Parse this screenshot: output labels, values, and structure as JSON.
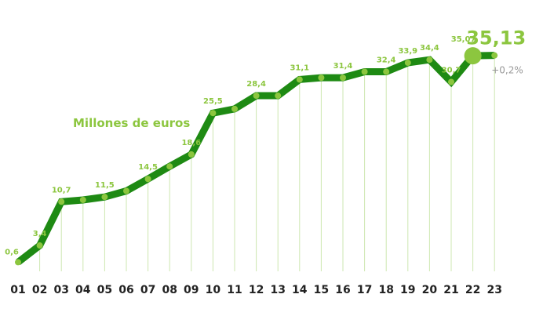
{
  "chart_data": {
    "type": "line",
    "unit_label": "Millones de euros",
    "categories": [
      "01",
      "02",
      "03",
      "04",
      "05",
      "06",
      "07",
      "08",
      "09",
      "10",
      "11",
      "12",
      "13",
      "14",
      "15",
      "16",
      "17",
      "18",
      "19",
      "20",
      "21",
      "22",
      "23"
    ],
    "values": [
      0.6,
      3.4,
      10.7,
      11.0,
      11.5,
      12.5,
      14.5,
      16.6,
      18.6,
      25.5,
      26.2,
      28.4,
      28.4,
      31.1,
      31.4,
      31.4,
      32.4,
      32.4,
      33.9,
      34.4,
      30.7,
      35.07,
      35.13
    ],
    "data_labels": [
      "0,6",
      "3,4",
      "10,7",
      "",
      "11,5",
      "",
      "14,5",
      "",
      "18,6",
      "25,5",
      "",
      "28,4",
      "",
      "31,1",
      "",
      "31,4",
      "",
      "32,4",
      "33,9",
      "34,4",
      "30,7",
      "35,07",
      "35,13"
    ],
    "final_value_label": "35,13",
    "final_change_label": "+0,2%",
    "highlight_index": 21,
    "ylim": [
      0,
      36
    ],
    "grid": "vertical",
    "colors": {
      "line": "#1e8a13",
      "markers": "#8cc63f",
      "labels": "#8cc63f",
      "gridlines": "#cde7b0",
      "ticks": "#222222",
      "change": "#999999"
    }
  }
}
